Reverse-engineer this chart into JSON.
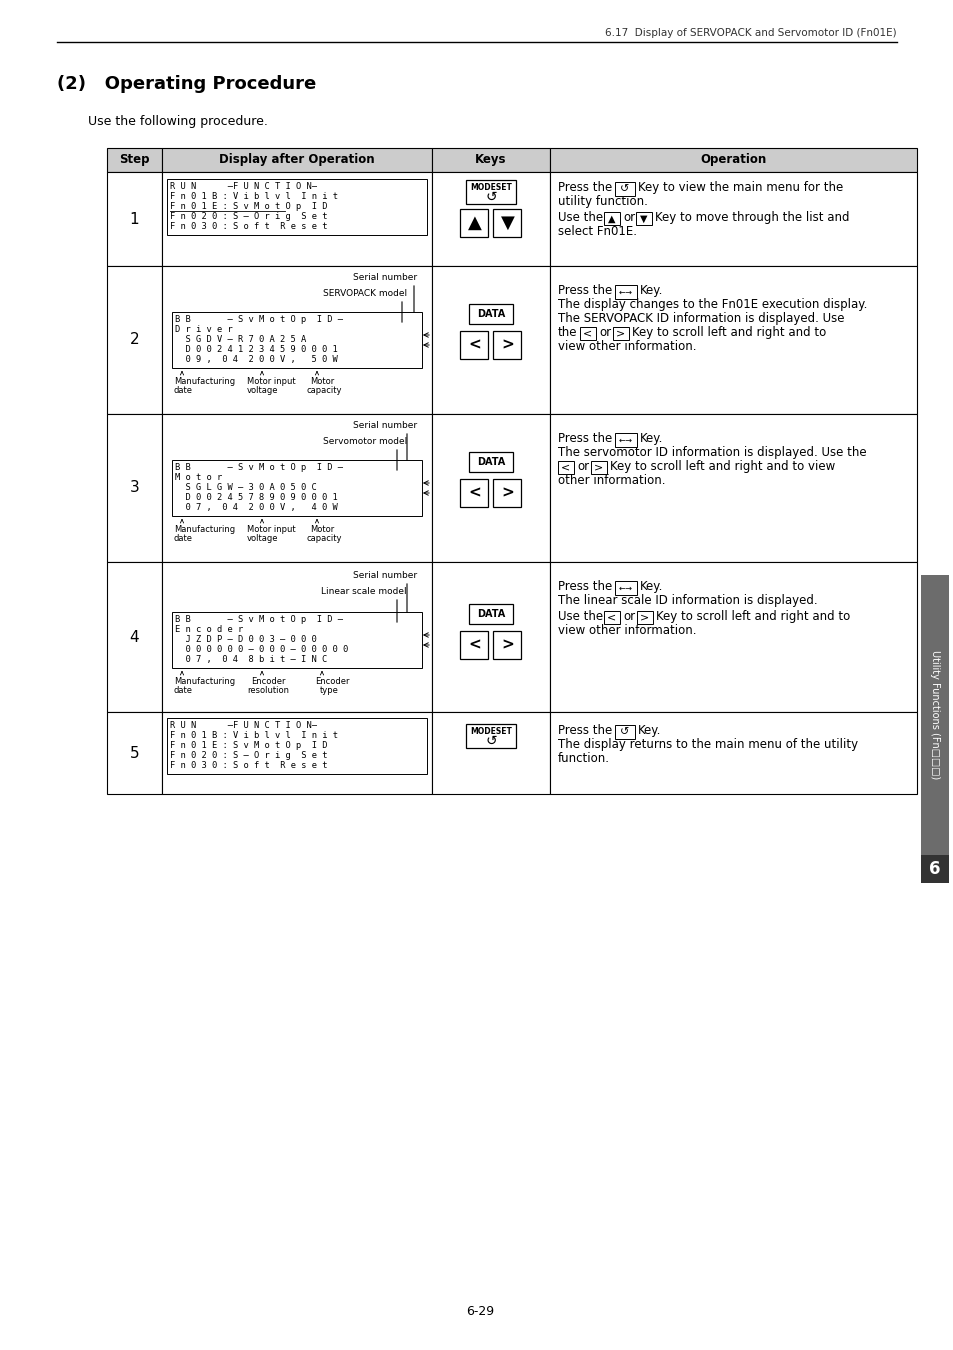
{
  "page_header": "6.17  Display of SERVOPACK and Servomotor ID (Fn01E)",
  "title": "(2)   Operating Procedure",
  "subtitle": "Use the following procedure.",
  "col_headers": [
    "Step",
    "Display after Operation",
    "Keys",
    "Operation"
  ],
  "bg_header": "#cccccc",
  "sidebar_text": "Utility Functions (Fn□□□)",
  "page_num": "6-29",
  "chapter_num": "6"
}
